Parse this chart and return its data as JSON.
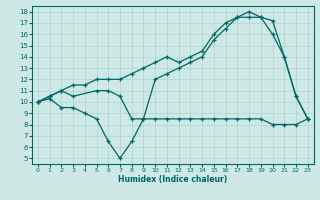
{
  "xlabel": "Humidex (Indice chaleur)",
  "bg_color": "#cde8e5",
  "line_color": "#006666",
  "grid_color": "#aed4d0",
  "xlim": [
    -0.5,
    23.5
  ],
  "ylim": [
    4.5,
    18.5
  ],
  "xticks": [
    0,
    1,
    2,
    3,
    4,
    5,
    6,
    7,
    8,
    9,
    10,
    11,
    12,
    13,
    14,
    15,
    16,
    17,
    18,
    19,
    20,
    21,
    22,
    23
  ],
  "yticks": [
    5,
    6,
    7,
    8,
    9,
    10,
    11,
    12,
    13,
    14,
    15,
    16,
    17,
    18
  ],
  "line1_x": [
    0,
    1,
    2,
    3,
    4,
    5,
    6,
    7,
    8,
    9,
    10,
    11,
    12,
    13,
    14,
    15,
    16,
    17,
    18,
    19,
    20,
    21,
    22,
    23
  ],
  "line1_y": [
    10,
    10.3,
    9.5,
    9.5,
    9,
    8.5,
    6.5,
    5,
    6.5,
    8.5,
    8.5,
    8.5,
    8.5,
    8.5,
    8.5,
    8.5,
    8.5,
    8.5,
    8.5,
    8.5,
    8,
    8,
    8,
    8.5
  ],
  "line2_x": [
    0,
    1,
    2,
    3,
    5,
    6,
    7,
    8,
    9,
    10,
    11,
    12,
    13,
    14,
    15,
    16,
    17,
    18,
    19,
    20,
    21,
    22,
    23
  ],
  "line2_y": [
    10,
    10.5,
    11,
    10.5,
    11,
    11,
    10.5,
    8.5,
    8.5,
    12,
    12.5,
    13,
    13.5,
    14,
    15.5,
    16.5,
    17.5,
    18,
    17.5,
    16,
    14,
    10.5,
    8.5
  ],
  "line3_x": [
    0,
    1,
    2,
    3,
    4,
    5,
    6,
    7,
    8,
    9,
    10,
    11,
    12,
    13,
    14,
    15,
    16,
    17,
    18,
    19,
    20,
    21,
    22,
    23
  ],
  "line3_y": [
    10,
    10.5,
    11,
    11.5,
    11.5,
    12,
    12,
    12,
    12.5,
    13,
    13.5,
    14,
    13.5,
    14,
    14.5,
    16,
    17,
    17.5,
    17.5,
    17.5,
    17.2,
    14,
    10.5,
    8.5
  ]
}
